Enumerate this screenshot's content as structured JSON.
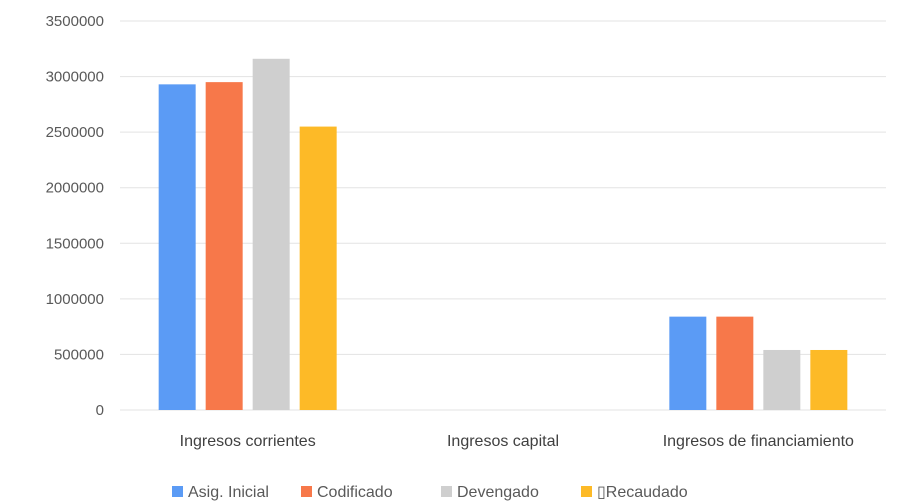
{
  "chart_data": {
    "type": "bar",
    "title": "",
    "xlabel": "",
    "ylabel": "",
    "ylim": [
      0,
      3500000
    ],
    "yticks": [
      0,
      500000,
      1000000,
      1500000,
      2000000,
      2500000,
      3000000,
      3500000
    ],
    "ytick_labels": [
      "0",
      "500000",
      "1000000",
      "1500000",
      "2000000",
      "2500000",
      "3000000",
      "3500000"
    ],
    "grid": true,
    "legend_position": "bottom",
    "categories": [
      "Ingresos corrientes",
      "Ingresos capital",
      "Ingresos de financiamiento"
    ],
    "series": [
      {
        "name": "Asig. Inicial",
        "color": "#5b9bf5",
        "values": [
          2930000,
          0,
          840000
        ]
      },
      {
        "name": "Codificado",
        "color": "#f7784a",
        "values": [
          2950000,
          0,
          840000
        ]
      },
      {
        "name": "Devengado",
        "color": "#cfcfcf",
        "values": [
          3160000,
          0,
          540000
        ]
      },
      {
        "name": "▯Recaudado",
        "color": "#fdba27",
        "values": [
          2550000,
          0,
          540000
        ]
      }
    ]
  }
}
